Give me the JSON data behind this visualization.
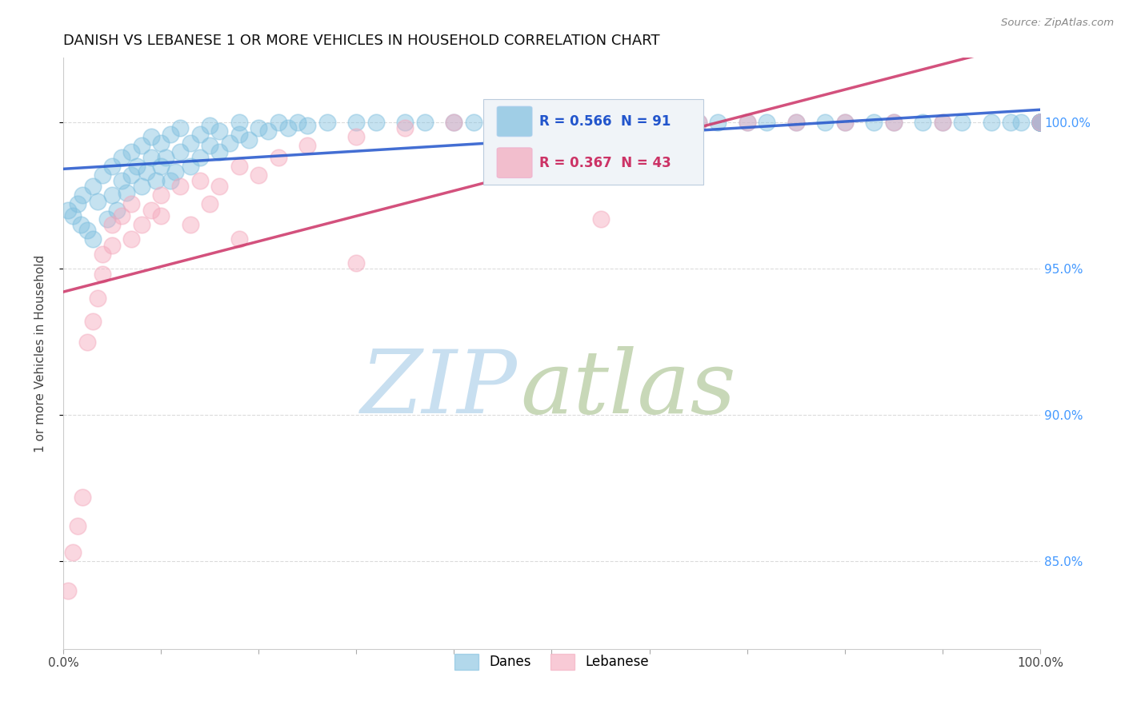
{
  "title": "DANISH VS LEBANESE 1 OR MORE VEHICLES IN HOUSEHOLD CORRELATION CHART",
  "source_text": "Source: ZipAtlas.com",
  "ylabel": "1 or more Vehicles in Household",
  "xlim": [
    0.0,
    1.0
  ],
  "ylim": [
    0.82,
    1.022
  ],
  "xtick_positions": [
    0.0,
    0.1,
    0.2,
    0.3,
    0.4,
    0.5,
    0.6,
    0.7,
    0.8,
    0.9,
    1.0
  ],
  "xticklabels": [
    "0.0%",
    "",
    "",
    "",
    "",
    "",
    "",
    "",
    "",
    "",
    "100.0%"
  ],
  "ytick_positions": [
    0.85,
    0.9,
    0.95,
    1.0
  ],
  "ytick_labels": [
    "85.0%",
    "90.0%",
    "95.0%",
    "100.0%"
  ],
  "R_danish": 0.566,
  "N_danish": 91,
  "R_lebanese": 0.367,
  "N_lebanese": 43,
  "danish_color": "#7fbfdf",
  "lebanese_color": "#f4a8bc",
  "danish_line_color": "#2255cc",
  "lebanese_line_color": "#cc3366",
  "legend_box_color": "#e8f0f8",
  "watermark_zip_color": "#c8dff0",
  "watermark_atlas_color": "#c8d8b8",
  "background_color": "#ffffff",
  "grid_color": "#cccccc",
  "right_tick_color": "#4499ff",
  "title_color": "#111111",
  "source_color": "#888888",
  "danish_x": [
    0.005,
    0.01,
    0.015,
    0.018,
    0.02,
    0.025,
    0.03,
    0.03,
    0.035,
    0.04,
    0.045,
    0.05,
    0.05,
    0.055,
    0.06,
    0.06,
    0.065,
    0.07,
    0.07,
    0.075,
    0.08,
    0.08,
    0.085,
    0.09,
    0.09,
    0.095,
    0.1,
    0.1,
    0.105,
    0.11,
    0.11,
    0.115,
    0.12,
    0.12,
    0.13,
    0.13,
    0.14,
    0.14,
    0.15,
    0.15,
    0.16,
    0.16,
    0.17,
    0.18,
    0.18,
    0.19,
    0.2,
    0.21,
    0.22,
    0.23,
    0.24,
    0.25,
    0.27,
    0.3,
    0.32,
    0.35,
    0.37,
    0.4,
    0.42,
    0.45,
    0.5,
    0.55,
    0.58,
    0.6,
    0.62,
    0.65,
    0.67,
    0.7,
    0.72,
    0.75,
    0.78,
    0.8,
    0.83,
    0.85,
    0.88,
    0.9,
    0.92,
    0.95,
    0.97,
    0.98,
    1.0,
    1.0,
    1.0,
    1.0,
    1.0,
    1.0,
    1.0,
    1.0,
    1.0,
    1.0,
    1.0
  ],
  "danish_y": [
    0.97,
    0.968,
    0.972,
    0.965,
    0.975,
    0.963,
    0.978,
    0.96,
    0.973,
    0.982,
    0.967,
    0.975,
    0.985,
    0.97,
    0.98,
    0.988,
    0.976,
    0.982,
    0.99,
    0.985,
    0.978,
    0.992,
    0.983,
    0.988,
    0.995,
    0.98,
    0.985,
    0.993,
    0.988,
    0.98,
    0.996,
    0.983,
    0.99,
    0.998,
    0.985,
    0.993,
    0.988,
    0.996,
    0.992,
    0.999,
    0.99,
    0.997,
    0.993,
    0.996,
    1.0,
    0.994,
    0.998,
    0.997,
    1.0,
    0.998,
    1.0,
    0.999,
    1.0,
    1.0,
    1.0,
    1.0,
    1.0,
    1.0,
    1.0,
    1.0,
    1.0,
    1.0,
    1.0,
    1.0,
    1.0,
    1.0,
    1.0,
    1.0,
    1.0,
    1.0,
    1.0,
    1.0,
    1.0,
    1.0,
    1.0,
    1.0,
    1.0,
    1.0,
    1.0,
    1.0,
    1.0,
    1.0,
    1.0,
    1.0,
    1.0,
    1.0,
    1.0,
    1.0,
    1.0,
    1.0,
    1.0
  ],
  "lebanese_x": [
    0.005,
    0.01,
    0.015,
    0.02,
    0.025,
    0.03,
    0.035,
    0.04,
    0.04,
    0.05,
    0.05,
    0.06,
    0.07,
    0.07,
    0.08,
    0.09,
    0.1,
    0.1,
    0.12,
    0.13,
    0.14,
    0.15,
    0.16,
    0.18,
    0.2,
    0.22,
    0.25,
    0.3,
    0.35,
    0.4,
    0.45,
    0.5,
    0.6,
    0.65,
    0.7,
    0.75,
    0.8,
    0.85,
    0.9,
    1.0,
    0.18,
    0.3,
    0.55
  ],
  "lebanese_y": [
    0.84,
    0.853,
    0.862,
    0.872,
    0.925,
    0.932,
    0.94,
    0.948,
    0.955,
    0.958,
    0.965,
    0.968,
    0.96,
    0.972,
    0.965,
    0.97,
    0.975,
    0.968,
    0.978,
    0.965,
    0.98,
    0.972,
    0.978,
    0.985,
    0.982,
    0.988,
    0.992,
    0.995,
    0.998,
    1.0,
    1.0,
    1.0,
    1.0,
    1.0,
    1.0,
    1.0,
    1.0,
    1.0,
    1.0,
    1.0,
    0.96,
    0.952,
    0.967
  ]
}
